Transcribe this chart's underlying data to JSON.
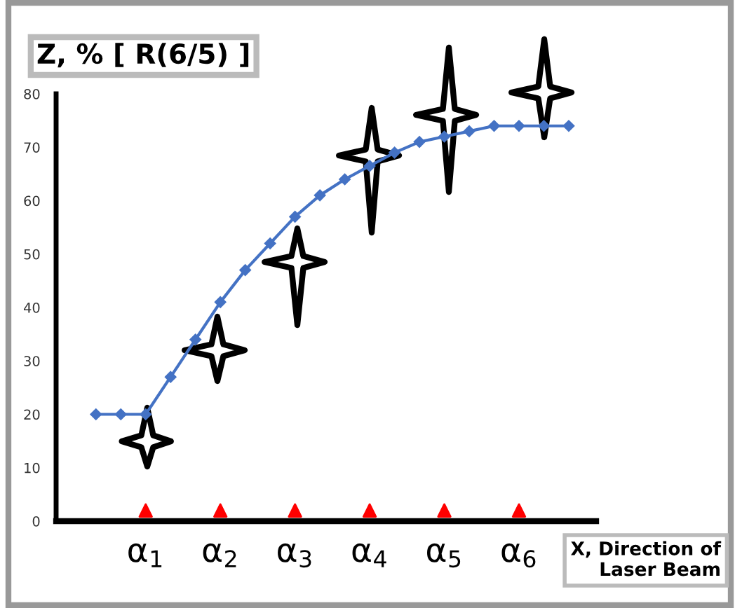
{
  "chart_data": {
    "type": "line",
    "ylabel": "Z, % [ R(6/5) ]",
    "xlabel": "X, Direction of\nLaser Beam",
    "categories": [
      null,
      null,
      "α$_{1}$",
      null,
      null,
      "α$_{2}$",
      null,
      null,
      "α$_{3}$",
      null,
      null,
      "α$_{4}$",
      null,
      null,
      "α$_{5}$",
      null,
      null,
      "α$_{6}$",
      null,
      null
    ],
    "series": [
      {
        "color": "#4472c4",
        "marker": "diamond",
        "values": [
          20,
          20,
          20,
          27,
          34,
          41,
          47,
          52,
          57,
          61,
          64,
          66.5,
          69,
          71,
          72,
          73,
          74,
          74,
          74,
          74
        ]
      },
      {
        "type": "scatter",
        "color": "#ff0000",
        "marker": "triangle",
        "values": [
          null,
          null,
          2,
          null,
          null,
          2,
          null,
          null,
          2,
          null,
          null,
          2,
          null,
          null,
          2,
          null,
          null,
          2,
          null,
          null
        ]
      }
    ],
    "ylim": [
      0,
      80
    ],
    "yticks": [
      0,
      10,
      20,
      30,
      40,
      50,
      60,
      70,
      80
    ],
    "grid": false,
    "legend": false
  }
}
